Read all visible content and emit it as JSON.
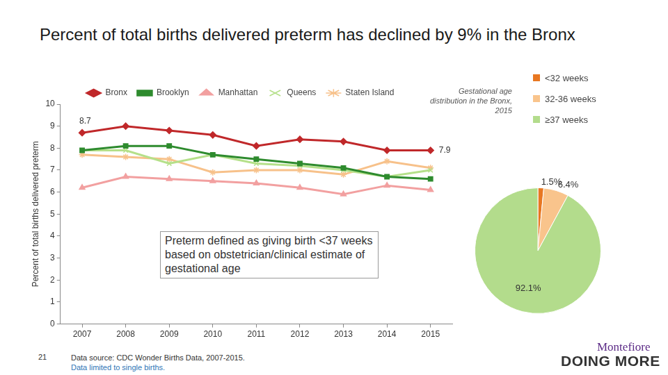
{
  "title": "Percent of total births delivered preterm has declined by 9% in the Bronx",
  "chart_data": [
    {
      "type": "line",
      "categories": [
        "2007",
        "2008",
        "2009",
        "2010",
        "2011",
        "2012",
        "2013",
        "2014",
        "2015"
      ],
      "y_label": "Percent of total births delivered preterm",
      "ylim": [
        0,
        10
      ],
      "yticks": [
        0,
        1,
        2,
        3,
        4,
        5,
        6,
        7,
        8,
        9,
        10
      ],
      "grid": false,
      "legend": "top",
      "annotation": "Preterm defined as giving birth <37 weeks based on obstetrician/clinical estimate of gestational age",
      "series": [
        {
          "name": "Bronx",
          "color": "#c0282a",
          "marker": "diamond",
          "values": [
            8.7,
            9.0,
            8.8,
            8.6,
            8.1,
            8.4,
            8.3,
            7.9,
            7.9
          ],
          "value_labels": [
            "8.7",
            null,
            null,
            null,
            null,
            null,
            null,
            null,
            "7.9"
          ]
        },
        {
          "name": "Brooklyn",
          "color": "#2e8b2e",
          "marker": "square",
          "values": [
            7.9,
            8.1,
            8.1,
            7.7,
            7.5,
            7.3,
            7.1,
            6.7,
            6.6
          ]
        },
        {
          "name": "Manhattan",
          "color": "#f2a0a0",
          "marker": "triangle",
          "values": [
            6.2,
            6.7,
            6.6,
            6.5,
            6.4,
            6.2,
            5.9,
            6.3,
            6.1
          ]
        },
        {
          "name": "Queens",
          "color": "#b5e08a",
          "marker": "x",
          "values": [
            7.9,
            7.9,
            7.3,
            7.7,
            7.3,
            7.2,
            7.0,
            6.7,
            7.0
          ]
        },
        {
          "name": "Staten Island",
          "color": "#f7c18a",
          "marker": "star",
          "values": [
            7.7,
            7.6,
            7.5,
            6.9,
            7.0,
            7.0,
            6.8,
            7.4,
            7.1
          ]
        }
      ]
    },
    {
      "type": "pie",
      "title": "Gestational age distribution in the Bronx, 2015",
      "categories": [
        "<32 weeks",
        "32-36 weeks",
        "≥37 weeks"
      ],
      "values": [
        1.5,
        6.4,
        92.1
      ],
      "value_labels": [
        "1.5%",
        "6.4%",
        "92.1%"
      ],
      "colors": [
        "#e87722",
        "#f9c48c",
        "#b3dc8c"
      ],
      "legend": "right"
    }
  ],
  "source": "Data source: CDC Wonder Births Data, 2007-2015.",
  "note": "Data limited to single births.",
  "page_number": "21",
  "logo": {
    "name": "Montefiore",
    "tagline": "DOING MORE"
  }
}
